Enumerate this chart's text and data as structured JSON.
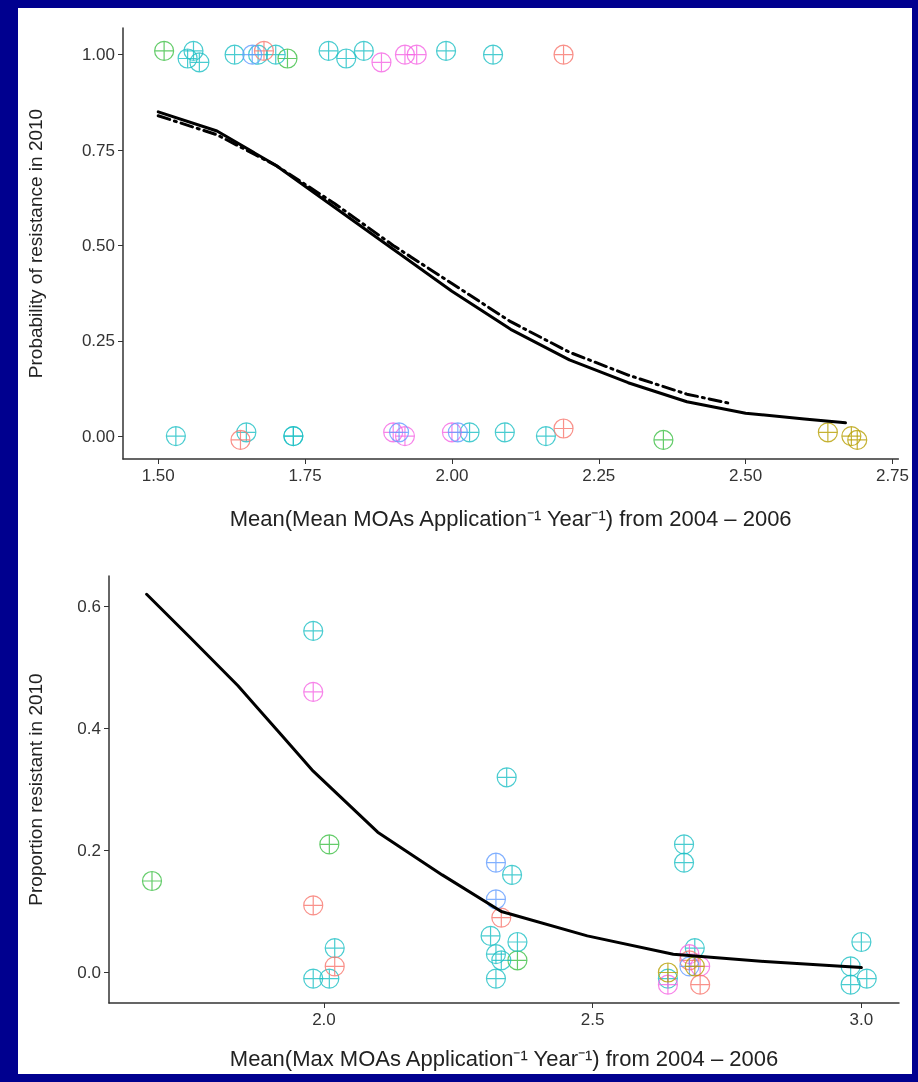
{
  "chart_data": [
    {
      "type": "scatter",
      "xlabel": "Mean(Mean MOAs Application⁻¹ Year⁻¹) from 2004 – 2006",
      "ylabel": "Probability of resistance in 2010",
      "xlim": [
        1.44,
        2.76
      ],
      "ylim": [
        -0.06,
        1.07
      ],
      "xticks": [
        {
          "value": 1.5,
          "label": "1.50"
        },
        1.75,
        {
          "value": 2,
          "label": "2.00"
        },
        2.25,
        {
          "value": 2.5,
          "label": "2.50"
        },
        2.75
      ],
      "yticks": [
        {
          "value": 0,
          "label": "0.00"
        },
        0.25,
        {
          "value": 0.5,
          "label": "0.50"
        },
        0.75,
        {
          "value": 1,
          "label": "1.00"
        }
      ],
      "grid": false,
      "marker": "cross",
      "series": [
        {
          "color": "#3dbf45",
          "x": [
            1.51,
            1.72,
            2.36
          ],
          "values": [
            1.01,
            0.99,
            -0.01
          ]
        },
        {
          "color": "#1bbfc4",
          "x": [
            1.55,
            1.56,
            1.57,
            1.63,
            1.67,
            1.7,
            1.79,
            1.82,
            1.85,
            1.99,
            2.07,
            1.53,
            1.65,
            1.73,
            1.73,
            2.03,
            2.09,
            2.16
          ],
          "values": [
            0.99,
            1.01,
            0.98,
            1.0,
            1.0,
            1.0,
            1.01,
            0.99,
            1.01,
            1.01,
            1.0,
            0.0,
            0.01,
            0.0,
            0.0,
            0.01,
            0.01,
            0.0
          ]
        },
        {
          "color": "#f8766d",
          "x": [
            1.68,
            2.19,
            1.64,
            2.19
          ],
          "values": [
            1.01,
            1.0,
            -0.01,
            0.02
          ]
        },
        {
          "color": "#f564e3",
          "x": [
            1.88,
            1.92,
            1.94,
            1.9,
            1.92,
            2.0
          ],
          "values": [
            0.98,
            1.0,
            1.0,
            0.01,
            0.0,
            0.01
          ]
        },
        {
          "color": "#619cff",
          "x": [
            1.66,
            1.91,
            2.01
          ],
          "values": [
            1.0,
            0.01,
            0.01
          ]
        },
        {
          "color": "#b79f00",
          "x": [
            2.64,
            2.68,
            2.69
          ],
          "values": [
            0.01,
            0.0,
            -0.01
          ]
        },
        {
          "type": "line",
          "color": "#000000",
          "line_style": "solid",
          "marker": "none",
          "x": [
            1.5,
            1.6,
            1.7,
            1.8,
            1.9,
            2.0,
            2.1,
            2.2,
            2.3,
            2.4,
            2.5,
            2.6,
            2.67
          ],
          "values": [
            0.85,
            0.8,
            0.71,
            0.6,
            0.49,
            0.38,
            0.28,
            0.2,
            0.14,
            0.09,
            0.06,
            0.045,
            0.035
          ]
        },
        {
          "type": "line",
          "color": "#000000",
          "line_style": "dashed",
          "marker": "none",
          "x": [
            1.5,
            1.6,
            1.7,
            1.8,
            1.9,
            2.0,
            2.1,
            2.2,
            2.3,
            2.4,
            2.47
          ],
          "values": [
            0.84,
            0.79,
            0.71,
            0.61,
            0.5,
            0.4,
            0.3,
            0.22,
            0.16,
            0.11,
            0.087
          ]
        }
      ]
    },
    {
      "type": "scatter",
      "xlabel": "Mean(Max MOAs Application⁻¹ Year⁻¹) from 2004 – 2006",
      "ylabel": "Proportion resistant in 2010",
      "xlim": [
        1.6,
        3.07
      ],
      "ylim": [
        -0.05,
        0.65
      ],
      "xticks": [
        {
          "value": 2,
          "label": "2.0"
        },
        2.5,
        {
          "value": 3,
          "label": "3.0"
        }
      ],
      "yticks": [
        {
          "value": 0,
          "label": "0.0"
        },
        0.2,
        0.4,
        0.6
      ],
      "grid": false,
      "marker": "cross",
      "series": [
        {
          "color": "#3dbf45",
          "x": [
            1.68,
            2.01,
            2.36
          ],
          "values": [
            0.15,
            0.21,
            0.02
          ]
        },
        {
          "color": "#1bbfc4",
          "x": [
            1.98,
            2.34,
            2.35,
            2.67,
            2.67,
            2.31,
            2.36,
            2.32,
            2.33,
            2.32,
            2.02,
            1.98,
            2.01,
            2.64,
            2.69,
            3.0,
            2.98,
            2.98,
            3.01
          ],
          "values": [
            0.56,
            0.32,
            0.16,
            0.21,
            0.18,
            0.06,
            0.05,
            0.03,
            0.02,
            -0.01,
            0.04,
            -0.01,
            -0.01,
            -0.01,
            0.04,
            0.05,
            0.01,
            -0.02,
            -0.01
          ]
        },
        {
          "color": "#f564e3",
          "x": [
            1.98,
            2.64,
            2.68,
            2.7
          ],
          "values": [
            0.46,
            -0.02,
            0.03,
            0.01
          ]
        },
        {
          "color": "#f8766d",
          "x": [
            1.98,
            2.33,
            2.02,
            2.68,
            2.7
          ],
          "values": [
            0.11,
            0.09,
            0.01,
            0.02,
            -0.02
          ]
        },
        {
          "color": "#619cff",
          "x": [
            2.32,
            2.32,
            2.68
          ],
          "values": [
            0.18,
            0.12,
            0.01
          ]
        },
        {
          "color": "#b79f00",
          "x": [
            2.64,
            2.69
          ],
          "values": [
            0.0,
            0.01
          ]
        },
        {
          "type": "line",
          "color": "#000000",
          "line_style": "solid",
          "marker": "none",
          "x": [
            1.67,
            1.75,
            1.84,
            1.92,
            1.98,
            2.1,
            2.22,
            2.33,
            2.49,
            2.65,
            2.82,
            3.0
          ],
          "values": [
            0.62,
            0.55,
            0.47,
            0.39,
            0.33,
            0.23,
            0.16,
            0.1,
            0.06,
            0.03,
            0.018,
            0.008
          ]
        }
      ]
    }
  ]
}
